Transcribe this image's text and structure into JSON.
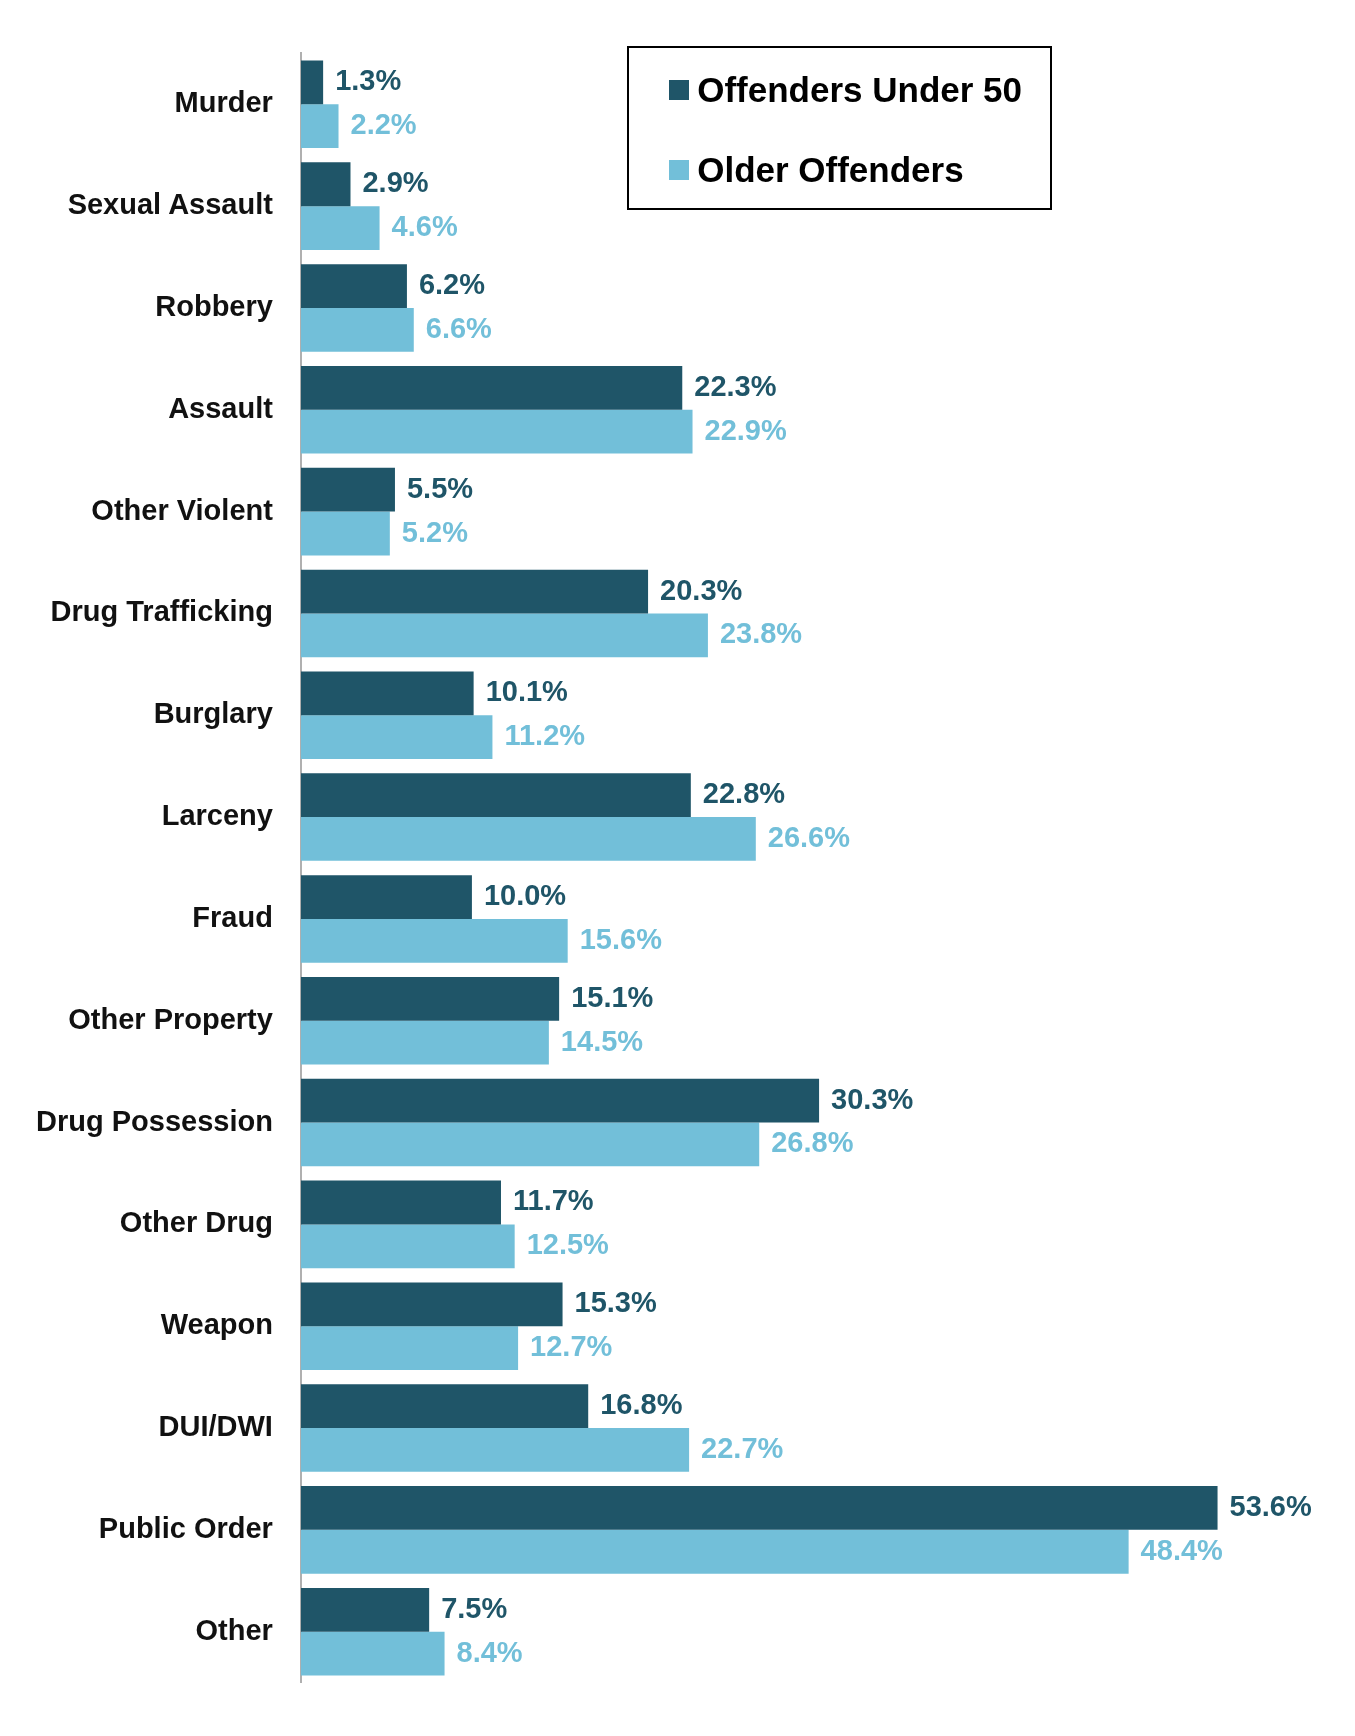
{
  "chart_data": {
    "type": "bar",
    "orientation": "horizontal",
    "legend": "top right",
    "categories": [
      "Murder",
      "Sexual Assault",
      "Robbery",
      "Assault",
      "Other Violent",
      "Drug Trafficking",
      "Burglary",
      "Larceny",
      "Fraud",
      "Other Property",
      "Drug Possession",
      "Other Drug",
      "Weapon",
      "DUI/DWI",
      "Public Order",
      "Other"
    ],
    "series": [
      {
        "name": "Offenders Under 50",
        "color": "#1f5568",
        "values": [
          1.3,
          2.9,
          6.2,
          22.3,
          5.5,
          20.3,
          10.1,
          22.8,
          10.0,
          15.1,
          30.3,
          11.7,
          15.3,
          16.8,
          53.6,
          7.5
        ],
        "value_labels": [
          "1.3%",
          "2.9%",
          "6.2%",
          "22.3%",
          "5.5%",
          "20.3%",
          "10.1%",
          "22.8%",
          "10.0%",
          "15.1%",
          "30.3%",
          "11.7%",
          "15.3%",
          "16.8%",
          "53.6%",
          "7.5%"
        ]
      },
      {
        "name": "Older Offenders",
        "color": "#72bfd9",
        "values": [
          2.2,
          4.6,
          6.6,
          22.9,
          5.2,
          23.8,
          11.2,
          26.6,
          15.6,
          14.5,
          26.8,
          12.5,
          12.7,
          22.7,
          48.4,
          8.4
        ],
        "value_labels": [
          "2.2%",
          "4.6%",
          "6.6%",
          "22.9%",
          "5.2%",
          "23.8%",
          "11.2%",
          "26.6%",
          "15.6%",
          "14.5%",
          "26.8%",
          "12.5%",
          "12.7%",
          "22.7%",
          "48.4%",
          "8.4%"
        ]
      }
    ]
  }
}
